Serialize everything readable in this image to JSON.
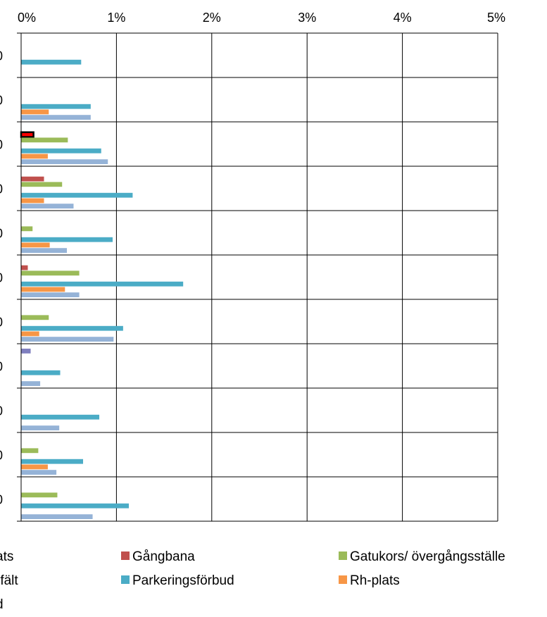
{
  "chart_data": {
    "type": "bar",
    "orientation": "horizontal",
    "title": "",
    "xlabel": "",
    "ylabel": "",
    "xlim": [
      0,
      5
    ],
    "x_tick_labels": [
      "0%",
      "1%",
      "2%",
      "3%",
      "4%",
      "5%"
    ],
    "x_tick_values": [
      0,
      1,
      2,
      3,
      4,
      5
    ],
    "x_axis_position": "top",
    "grid": true,
    "legend_position": "bottom",
    "categories": [
      "0",
      "0",
      "0",
      "0",
      "0",
      "0",
      "0",
      "0",
      "0",
      "0",
      "0"
    ],
    "series": [
      {
        "name": "ats",
        "color": "#7f7fbf",
        "values": [
          0,
          0,
          0,
          0,
          0,
          0,
          0,
          0.1,
          0,
          0,
          0
        ]
      },
      {
        "name": "Gångbana",
        "color": "#c0504d",
        "values": [
          0,
          0,
          0.13,
          0.24,
          0,
          0.07,
          0,
          0,
          0,
          0,
          0
        ]
      },
      {
        "name": "Gatukors/ övergångsställe",
        "color": "#9bbb59",
        "values": [
          0,
          0,
          0.49,
          0.43,
          0.12,
          0.61,
          0.29,
          0,
          0,
          0.18,
          0.38
        ]
      },
      {
        "name": "rfält",
        "color": "#4bacc6",
        "values": [
          0,
          0,
          0,
          0,
          0,
          0,
          0,
          0,
          0,
          0,
          0
        ]
      },
      {
        "name": "Parkeringsförbud",
        "color": "#4bacc6",
        "values": [
          0.63,
          0.73,
          0.84,
          1.17,
          0.96,
          1.7,
          1.07,
          0.41,
          0.82,
          0.65,
          1.13
        ]
      },
      {
        "name": "Rh-plats",
        "color": "#f79646",
        "values": [
          0,
          0.29,
          0.28,
          0.24,
          0.3,
          0.46,
          0.19,
          0,
          0,
          0.28,
          0
        ]
      },
      {
        "name": "d",
        "color": "#95b3d7",
        "values": [
          0,
          0.73,
          0.91,
          0.55,
          0.48,
          0.61,
          0.97,
          0.2,
          0.4,
          0.37,
          0.75
        ]
      }
    ],
    "highlight": {
      "category_index": 2,
      "series": "Gångbana",
      "color": "#ff0000"
    }
  }
}
